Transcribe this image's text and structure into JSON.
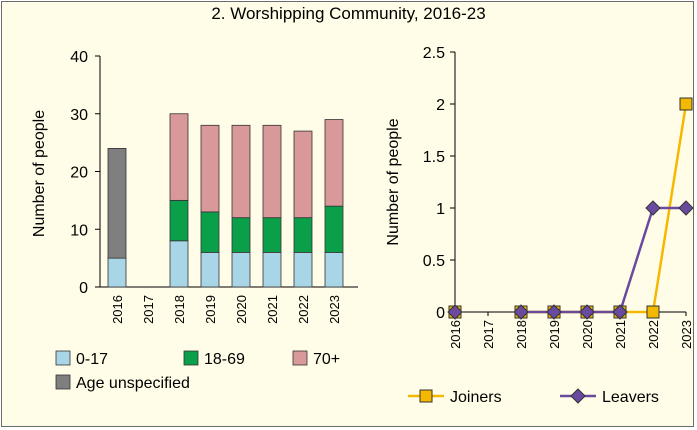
{
  "title": "2. Worshipping Community, 2016-23",
  "chart_data": [
    {
      "type": "bar",
      "stacked": true,
      "categories": [
        "2016",
        "2017",
        "2018",
        "2019",
        "2020",
        "2021",
        "2022",
        "2023"
      ],
      "series": [
        {
          "name": "0-17",
          "color": "#a8d6e6",
          "values": [
            5,
            0,
            8,
            6,
            6,
            6,
            6,
            6
          ]
        },
        {
          "name": "18-69",
          "color": "#0aa04a",
          "values": [
            0,
            0,
            7,
            7,
            6,
            6,
            6,
            8
          ]
        },
        {
          "name": "70+",
          "color": "#d9999b",
          "values": [
            0,
            0,
            15,
            15,
            16,
            16,
            15,
            15
          ]
        },
        {
          "name": "Age unspecified",
          "color": "#7f7f7f",
          "values": [
            19,
            0,
            0,
            0,
            0,
            0,
            0,
            0
          ]
        }
      ],
      "ylabel": "Number of people",
      "ylim": [
        0,
        40
      ],
      "yticks": [
        "0",
        "10",
        "20",
        "30",
        "40"
      ],
      "legend": "bottom",
      "grid": false
    },
    {
      "type": "line",
      "x": [
        "2016",
        "2017",
        "2018",
        "2019",
        "2020",
        "2021",
        "2022",
        "2023"
      ],
      "series": [
        {
          "name": "Joiners",
          "color": "#f5b800",
          "marker": "square",
          "values": [
            0,
            null,
            0,
            0,
            0,
            0,
            0,
            2
          ]
        },
        {
          "name": "Leavers",
          "color": "#6a4a9e",
          "marker": "diamond",
          "values": [
            0,
            null,
            0,
            0,
            0,
            0,
            1,
            1
          ]
        }
      ],
      "ylabel": "Number of people",
      "ylim": [
        0,
        2.5
      ],
      "yticks": [
        "0",
        "0.5",
        "1",
        "1.5",
        "2",
        "2.5"
      ],
      "legend": "bottom",
      "grid": false
    }
  ]
}
